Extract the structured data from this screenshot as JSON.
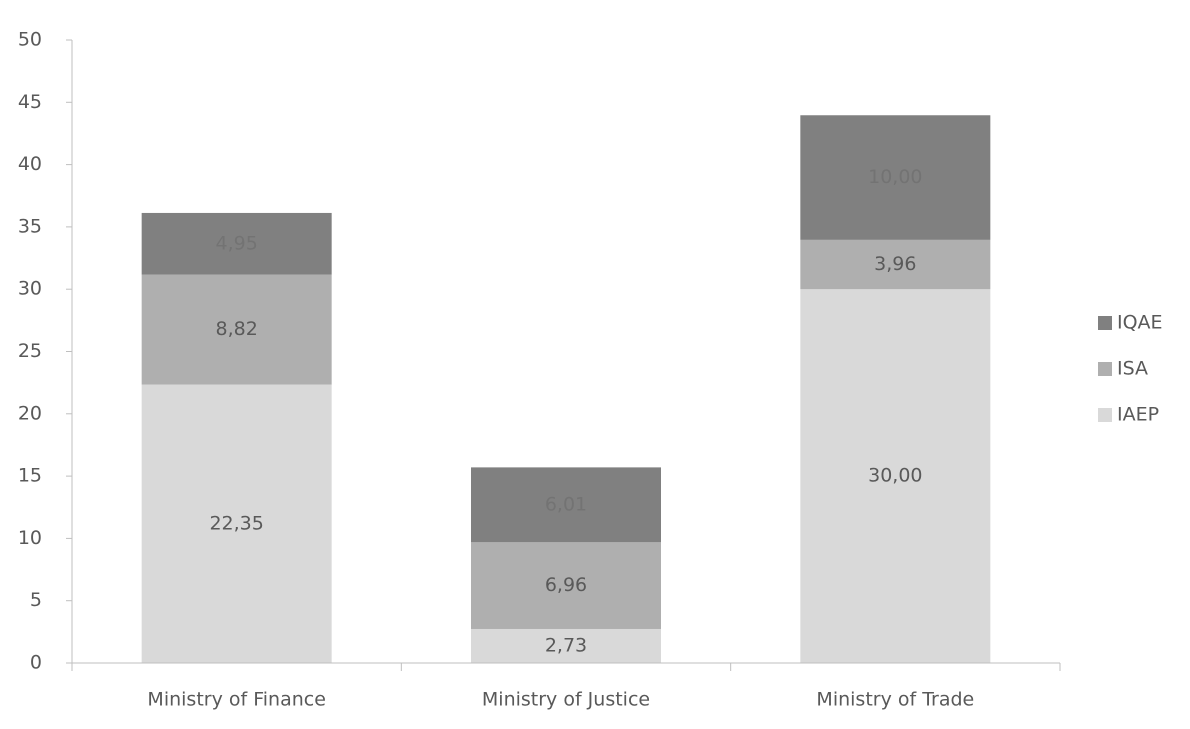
{
  "chart_data": {
    "type": "stacked_bar",
    "categories": [
      "Ministry of Finance",
      "Ministry of Justice",
      "Ministry of Trade"
    ],
    "series": [
      {
        "name": "IAEP",
        "color": "#d9d9d9",
        "values": [
          22.35,
          2.73,
          30.0
        ],
        "value_labels": [
          "22,35",
          "2,73",
          "30,00"
        ]
      },
      {
        "name": "ISA",
        "color": "#afafaf",
        "values": [
          8.82,
          6.96,
          3.96
        ],
        "value_labels": [
          "8,82",
          "6,96",
          "3,96"
        ]
      },
      {
        "name": "IQAE",
        "color": "#808080",
        "values": [
          4.95,
          6.01,
          10.0
        ],
        "value_labels": [
          "4,95",
          "6,01",
          "10,00"
        ]
      }
    ],
    "ylim": [
      0,
      50
    ],
    "yticks": [
      0,
      5,
      10,
      15,
      20,
      25,
      30,
      35,
      40,
      45,
      50
    ],
    "legend": "right"
  }
}
